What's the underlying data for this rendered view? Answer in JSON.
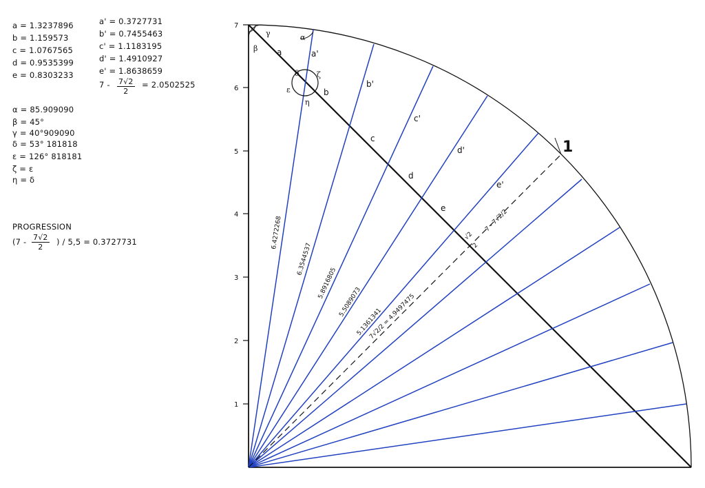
{
  "lengths": {
    "a": "a = 1.3237896",
    "b": "b = 1.159573",
    "c": "c = 1.0767565",
    "d": "d = 0.9535399",
    "e": "e = 0.8303233",
    "a_prime": "a' = 0.3727731",
    "b_prime": "b' = 0.7455463",
    "c_prime": "c' = 1.1183195",
    "d_prime": "d' = 1.4910927",
    "e_prime": "e' = 1.8638659",
    "formula_left": "7 -",
    "formula_num": "7√2",
    "formula_den": "2",
    "formula_right": "= 2.0502525"
  },
  "angles": {
    "alpha": "α = 85.909090",
    "beta": "β = 45°",
    "gamma": "γ = 40°909090",
    "delta": "δ = 53° 181818",
    "epsilon": "ε = 126° 818181",
    "zeta": "ζ = ε",
    "eta": "η = δ"
  },
  "progression": {
    "title": "PROGRESSION",
    "left": "(7 -",
    "num": "7√2",
    "den": "2",
    "right": ") / 5,5 = 0.3727731"
  },
  "axis": {
    "ticks": [
      "1",
      "2",
      "3",
      "4",
      "5",
      "6",
      "7"
    ]
  },
  "segment_labels": [
    "a",
    "b",
    "c",
    "d",
    "e"
  ],
  "prime_labels": [
    "a'",
    "b'",
    "c'",
    "d'",
    "e'"
  ],
  "angle_labels": {
    "beta": "β",
    "gamma": "γ",
    "alpha": "α",
    "delta": "δ",
    "epsilon": "ε",
    "zeta": "ζ",
    "eta": "η"
  },
  "ray_lengths": [
    "6.4272268",
    "6.3544537",
    "5.8916805",
    "5.5089073",
    "5.1361341"
  ],
  "half_diag": "7√2/2 = 4.9497475",
  "dashed_label": "7 - 7√2/2",
  "sqrt_label_num": "√2",
  "sqrt_label_den": "2",
  "arc_label": "1",
  "colors": {
    "ray": "#2040c0",
    "ink": "#111111"
  }
}
